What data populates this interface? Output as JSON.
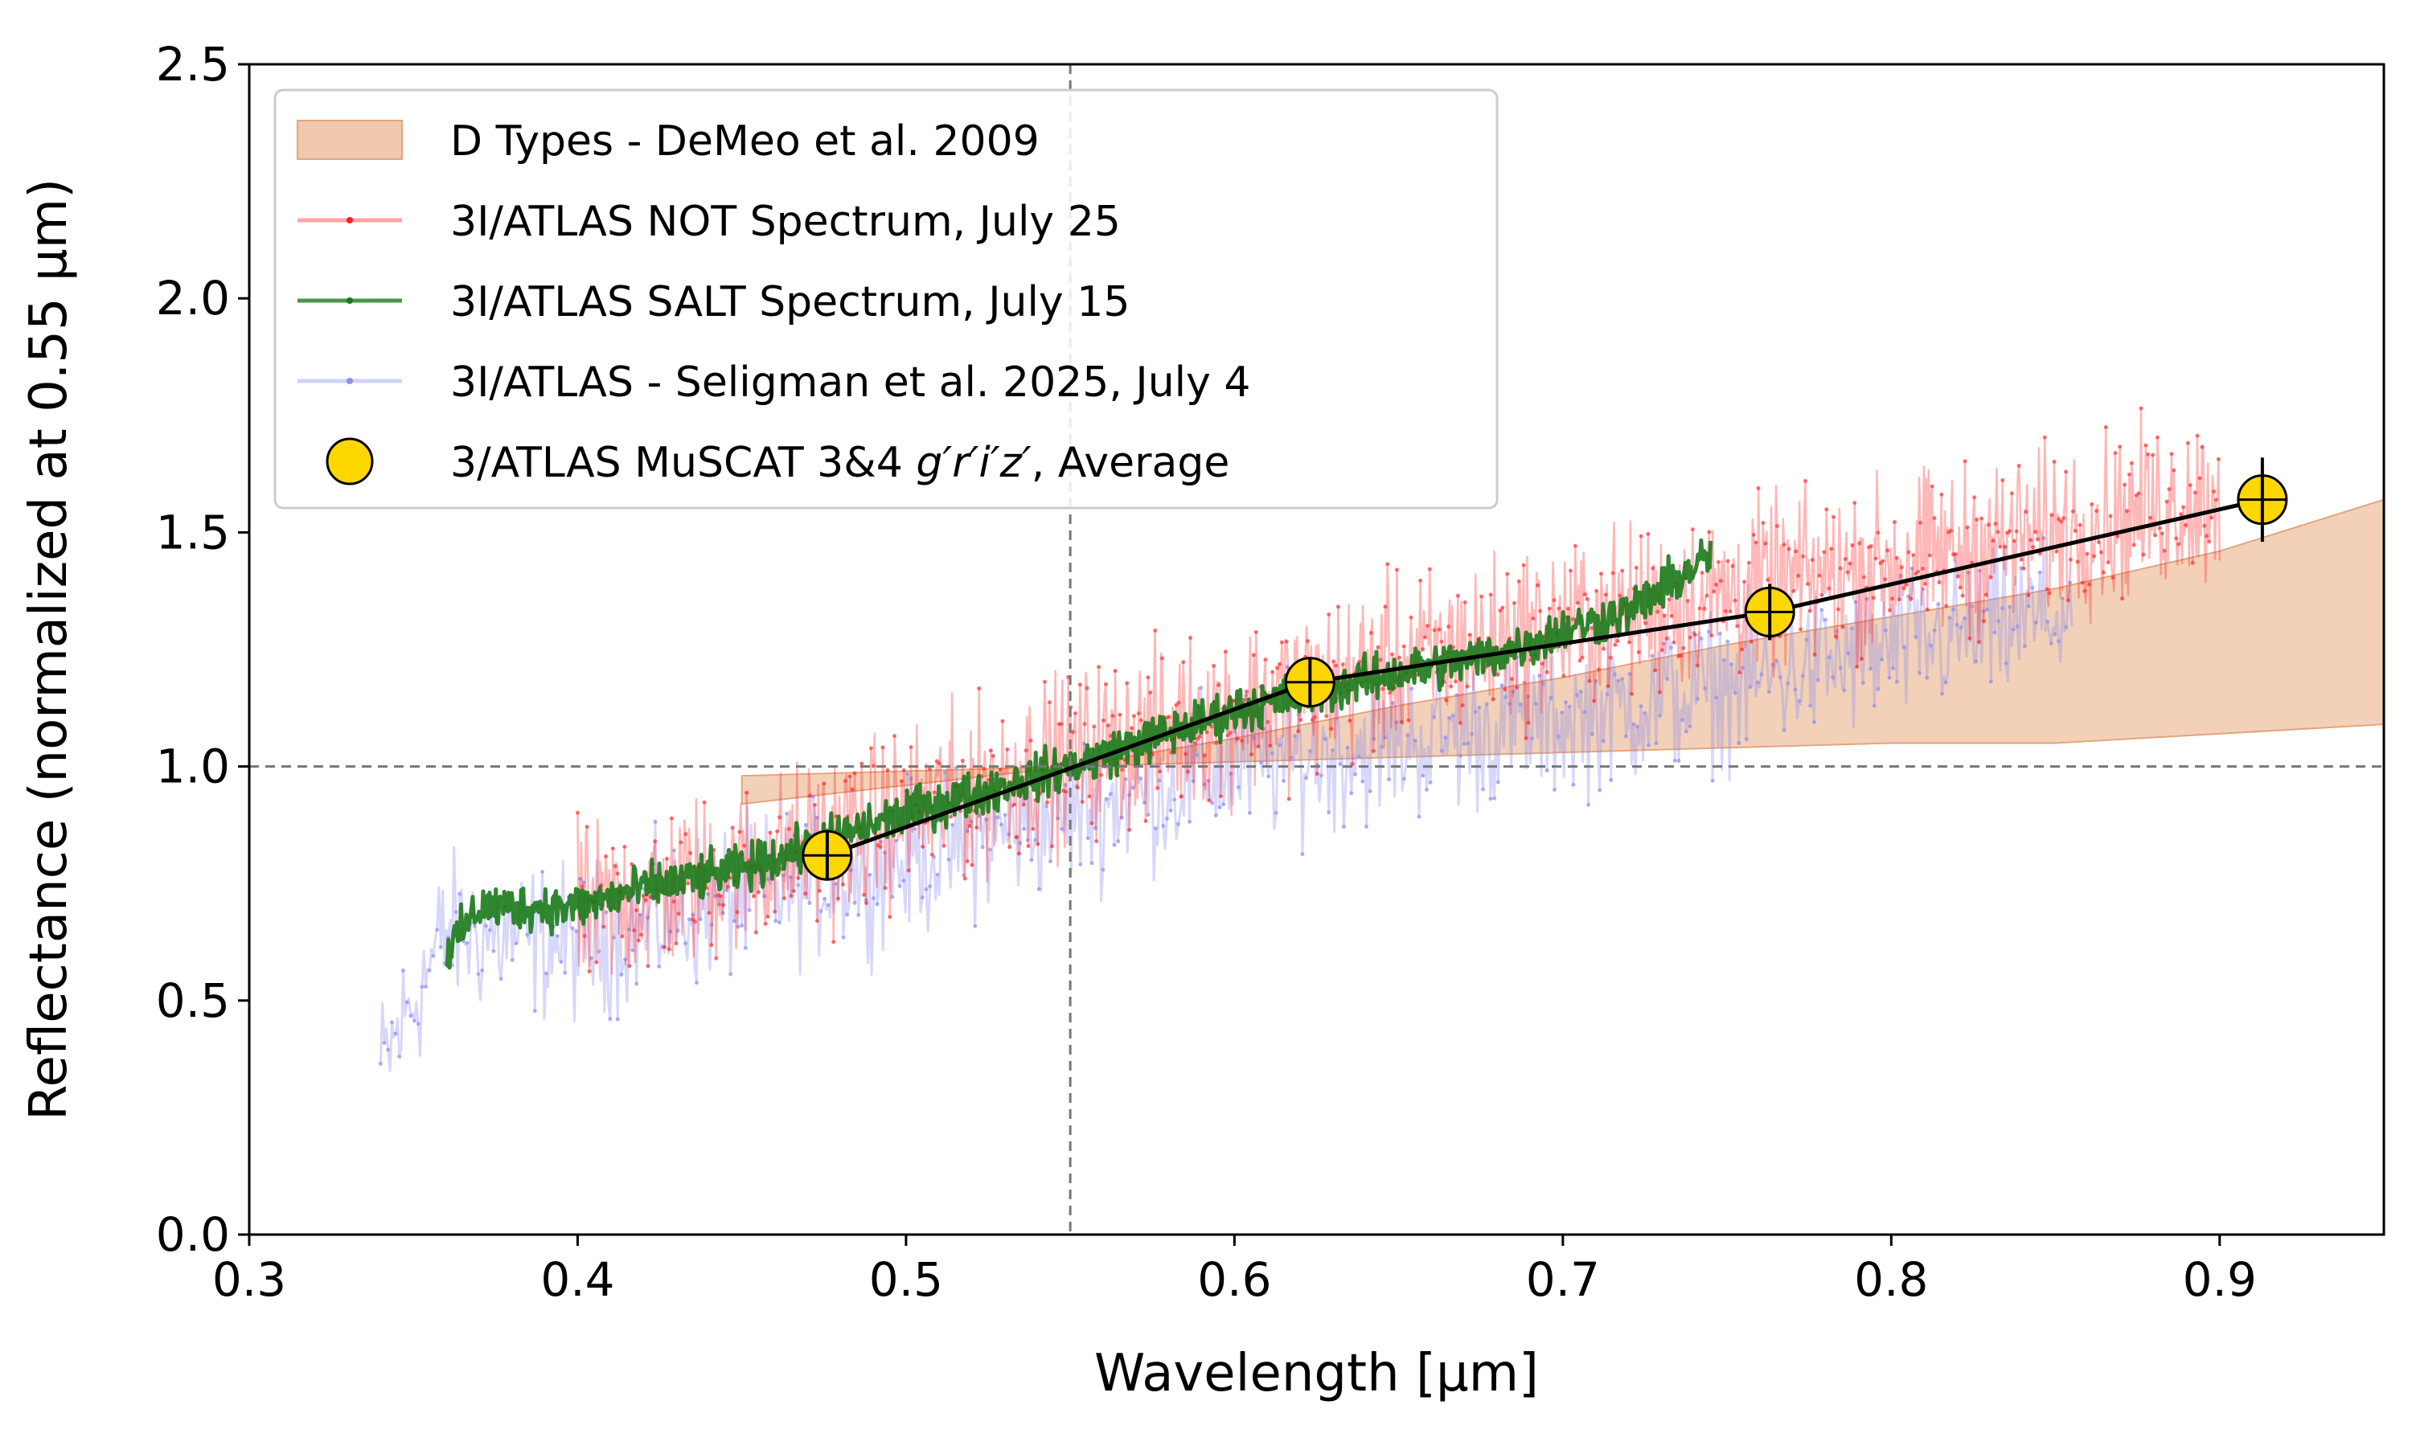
{
  "chart_data": {
    "type": "line",
    "title": "",
    "xlabel": "Wavelength [μm]",
    "ylabel": "Reflectance (normalized at 0.55 μm)",
    "xlim": [
      0.3,
      0.95
    ],
    "ylim": [
      0.0,
      2.5
    ],
    "xticks": [
      "0.3",
      "0.4",
      "0.5",
      "0.6",
      "0.7",
      "0.8",
      "0.9"
    ],
    "yticks": [
      "0.0",
      "0.5",
      "1.0",
      "1.5",
      "2.0",
      "2.5"
    ],
    "reference_lines": {
      "vertical_x": 0.55,
      "horizontal_y": 1.0
    },
    "legend": {
      "position": "upper-left",
      "entries": [
        {
          "key": "dtypes",
          "label": "D Types - DeMeo et al. 2009"
        },
        {
          "key": "not",
          "label": "3I/ATLAS NOT Spectrum, July 25"
        },
        {
          "key": "salt",
          "label": "3I/ATLAS SALT Spectrum, July 15"
        },
        {
          "key": "seligman",
          "label": "3I/ATLAS - Seligman et al. 2025, July 4"
        },
        {
          "key": "muscat",
          "label_prefix": "3/ATLAS MuSCAT 3&4 ",
          "label_italic": "g′r′i′z′",
          "label_suffix": ", Average"
        }
      ]
    },
    "colors": {
      "dtypes_fill": "#f0c9ac",
      "dtypes_edge": "#e2a67e",
      "not": "#ff2020",
      "salt": "#1a7a1a",
      "seligman": "#8c8cf0",
      "muscat_fill": "#ffd700",
      "muscat_edge": "#000000",
      "connector": "#000000",
      "ref_line": "#777777"
    },
    "dtypes_band": {
      "x": [
        0.45,
        0.55,
        0.6,
        0.65,
        0.7,
        0.75,
        0.8,
        0.85,
        0.9,
        0.95
      ],
      "upper": [
        0.98,
        1.0,
        1.06,
        1.13,
        1.19,
        1.26,
        1.32,
        1.38,
        1.46,
        1.57
      ],
      "lower": [
        0.92,
        1.0,
        1.01,
        1.02,
        1.03,
        1.04,
        1.05,
        1.05,
        1.07,
        1.09
      ]
    },
    "not_spectrum": {
      "x_range": [
        0.4,
        0.9
      ],
      "trend": [
        [
          0.4,
          0.68
        ],
        [
          0.45,
          0.78
        ],
        [
          0.5,
          0.9
        ],
        [
          0.55,
          1.02
        ],
        [
          0.6,
          1.12
        ],
        [
          0.65,
          1.22
        ],
        [
          0.7,
          1.3
        ],
        [
          0.75,
          1.37
        ],
        [
          0.8,
          1.43
        ],
        [
          0.85,
          1.5
        ],
        [
          0.9,
          1.58
        ]
      ],
      "scatter": 0.11
    },
    "salt_spectrum": {
      "x_range": [
        0.36,
        0.745
      ],
      "trend": [
        [
          0.36,
          0.6
        ],
        [
          0.37,
          0.7
        ],
        [
          0.4,
          0.7
        ],
        [
          0.42,
          0.74
        ],
        [
          0.45,
          0.78
        ],
        [
          0.5,
          0.9
        ],
        [
          0.55,
          1.0
        ],
        [
          0.6,
          1.12
        ],
        [
          0.65,
          1.2
        ],
        [
          0.68,
          1.24
        ],
        [
          0.7,
          1.29
        ],
        [
          0.72,
          1.33
        ],
        [
          0.745,
          1.45
        ]
      ],
      "scatter": 0.03
    },
    "seligman_spectrum": {
      "x_range": [
        0.34,
        0.855
      ],
      "trend": [
        [
          0.34,
          0.35
        ],
        [
          0.36,
          0.65
        ],
        [
          0.4,
          0.62
        ],
        [
          0.45,
          0.72
        ],
        [
          0.5,
          0.8
        ],
        [
          0.55,
          0.9
        ],
        [
          0.6,
          1.0
        ],
        [
          0.65,
          1.05
        ],
        [
          0.7,
          1.1
        ],
        [
          0.75,
          1.17
        ],
        [
          0.8,
          1.25
        ],
        [
          0.855,
          1.33
        ]
      ],
      "scatter": 0.1
    },
    "muscat": {
      "x": [
        0.476,
        0.623,
        0.763,
        0.913
      ],
      "y": [
        0.81,
        1.18,
        1.33,
        1.57
      ],
      "yerr": [
        0.05,
        0.05,
        0.06,
        0.09
      ]
    }
  }
}
